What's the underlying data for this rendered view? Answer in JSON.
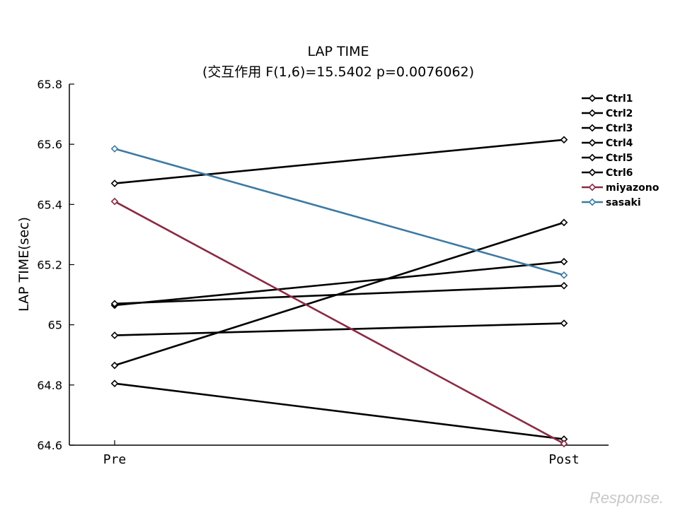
{
  "chart_data": {
    "type": "line",
    "title": "LAP TIME",
    "subtitle": "(交互作用 F(1,6)=15.5402 p=0.0076062)",
    "xlabel": "",
    "ylabel": "LAP TIME(sec)",
    "categories": [
      "Pre",
      "Post"
    ],
    "ylim": [
      64.6,
      65.8
    ],
    "yticks": [
      "65.8",
      "65.6",
      "65.4",
      "65.2",
      "65",
      "64.8",
      "64.6"
    ],
    "ytick_values": [
      65.8,
      65.6,
      65.4,
      65.2,
      65.0,
      64.8,
      64.6
    ],
    "legend_position": "top-right",
    "grid": false,
    "series": [
      {
        "name": "Ctrl1",
        "color": "#000000",
        "values": [
          65.47,
          65.615
        ]
      },
      {
        "name": "Ctrl2",
        "color": "#000000",
        "values": [
          64.865,
          65.34
        ]
      },
      {
        "name": "Ctrl3",
        "color": "#000000",
        "values": [
          65.065,
          65.21
        ]
      },
      {
        "name": "Ctrl4",
        "color": "#000000",
        "values": [
          65.07,
          65.13
        ]
      },
      {
        "name": "Ctrl5",
        "color": "#000000",
        "values": [
          64.965,
          65.005
        ]
      },
      {
        "name": "Ctrl6",
        "color": "#000000",
        "values": [
          64.805,
          64.62
        ]
      },
      {
        "name": "miyazono",
        "color": "#8b2a43",
        "values": [
          65.41,
          64.605
        ]
      },
      {
        "name": "sasaki",
        "color": "#3e7aa3",
        "values": [
          65.585,
          65.165
        ]
      }
    ]
  },
  "watermark": "Response."
}
